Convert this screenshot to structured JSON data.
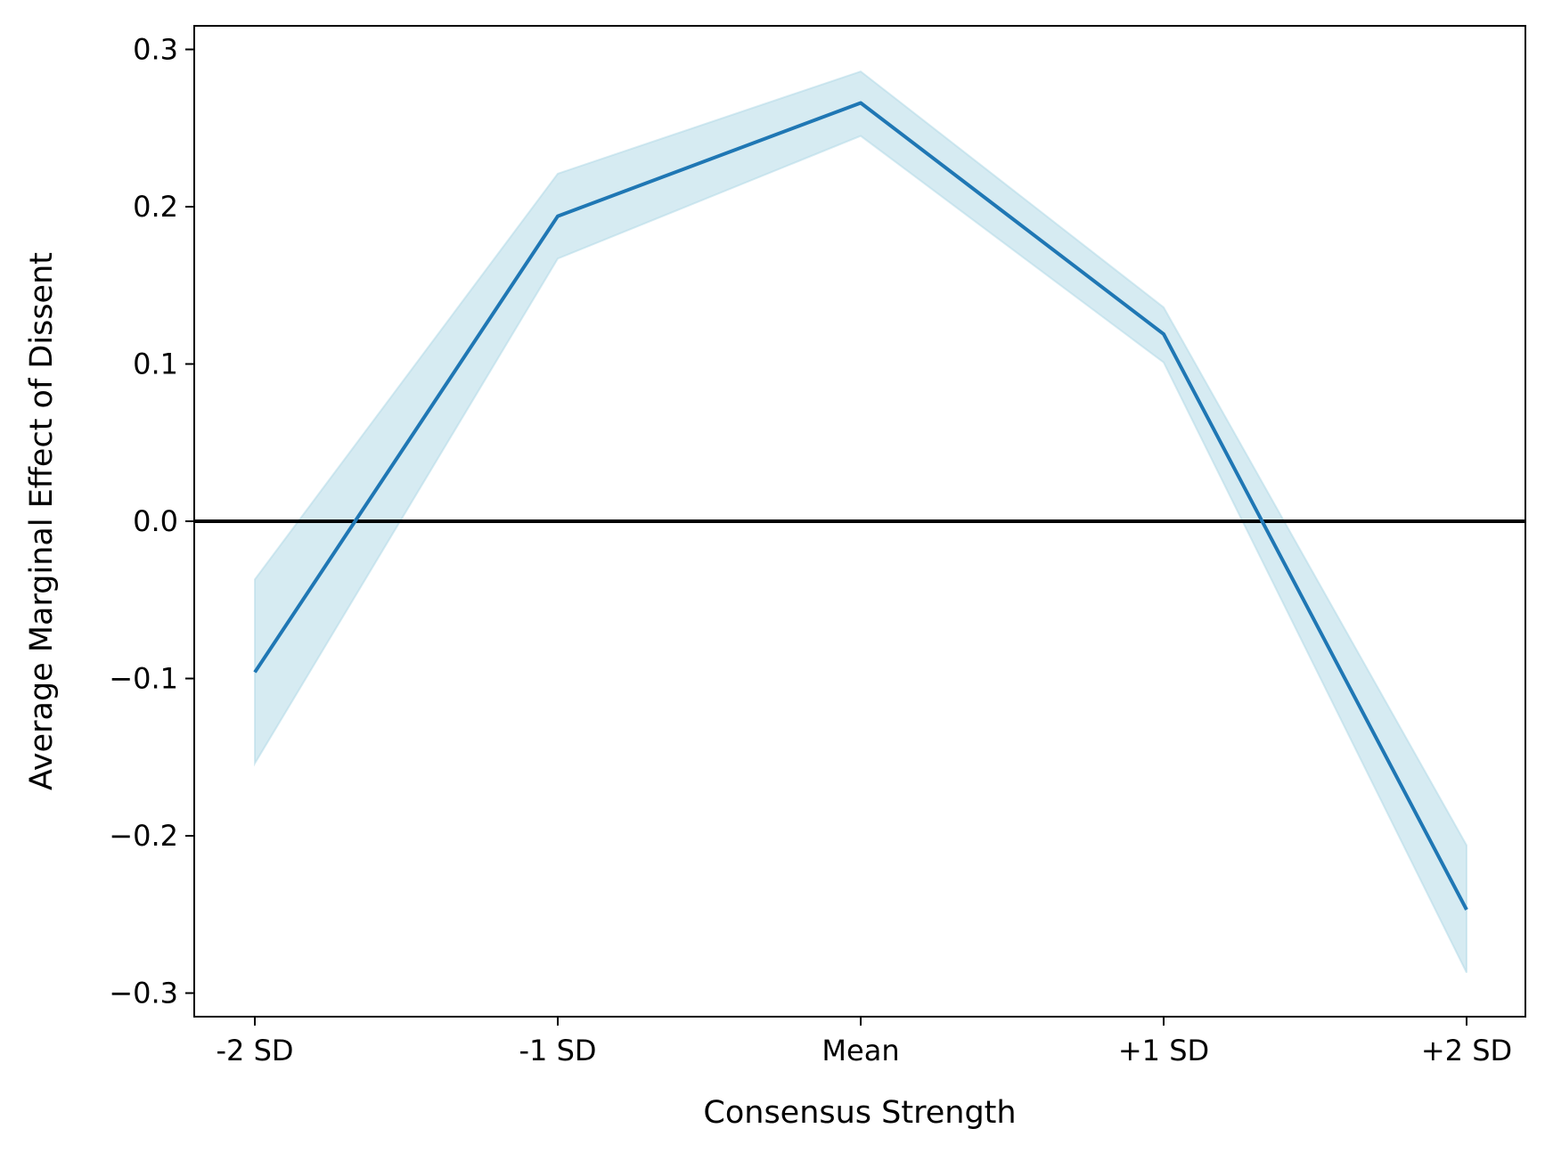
{
  "chart_data": {
    "type": "line",
    "xlabel": "Consensus Strength",
    "ylabel": "Average Marginal Effect of Dissent",
    "categories": [
      "-2 SD",
      "-1 SD",
      "Mean",
      "+1 SD",
      "+2 SD"
    ],
    "ylim": [
      -0.315,
      0.315
    ],
    "yticks": [
      -0.3,
      -0.2,
      -0.1,
      0.0,
      0.1,
      0.2,
      0.3
    ],
    "ytick_labels": [
      "−0.3",
      "−0.2",
      "−0.1",
      "0.0",
      "0.1",
      "0.2",
      "0.3"
    ],
    "reference_line": 0.0,
    "grid": false,
    "series": [
      {
        "values": [
          -0.096,
          0.194,
          0.266,
          0.119,
          -0.247
        ],
        "ci_lower": [
          -0.154,
          0.167,
          0.245,
          0.101,
          -0.287
        ],
        "ci_upper": [
          -0.037,
          0.221,
          0.286,
          0.136,
          -0.206
        ]
      }
    ],
    "colors": {
      "line": "#1f77b4",
      "band": "#add8e6",
      "reference": "#000000",
      "axes": "#000000"
    }
  }
}
